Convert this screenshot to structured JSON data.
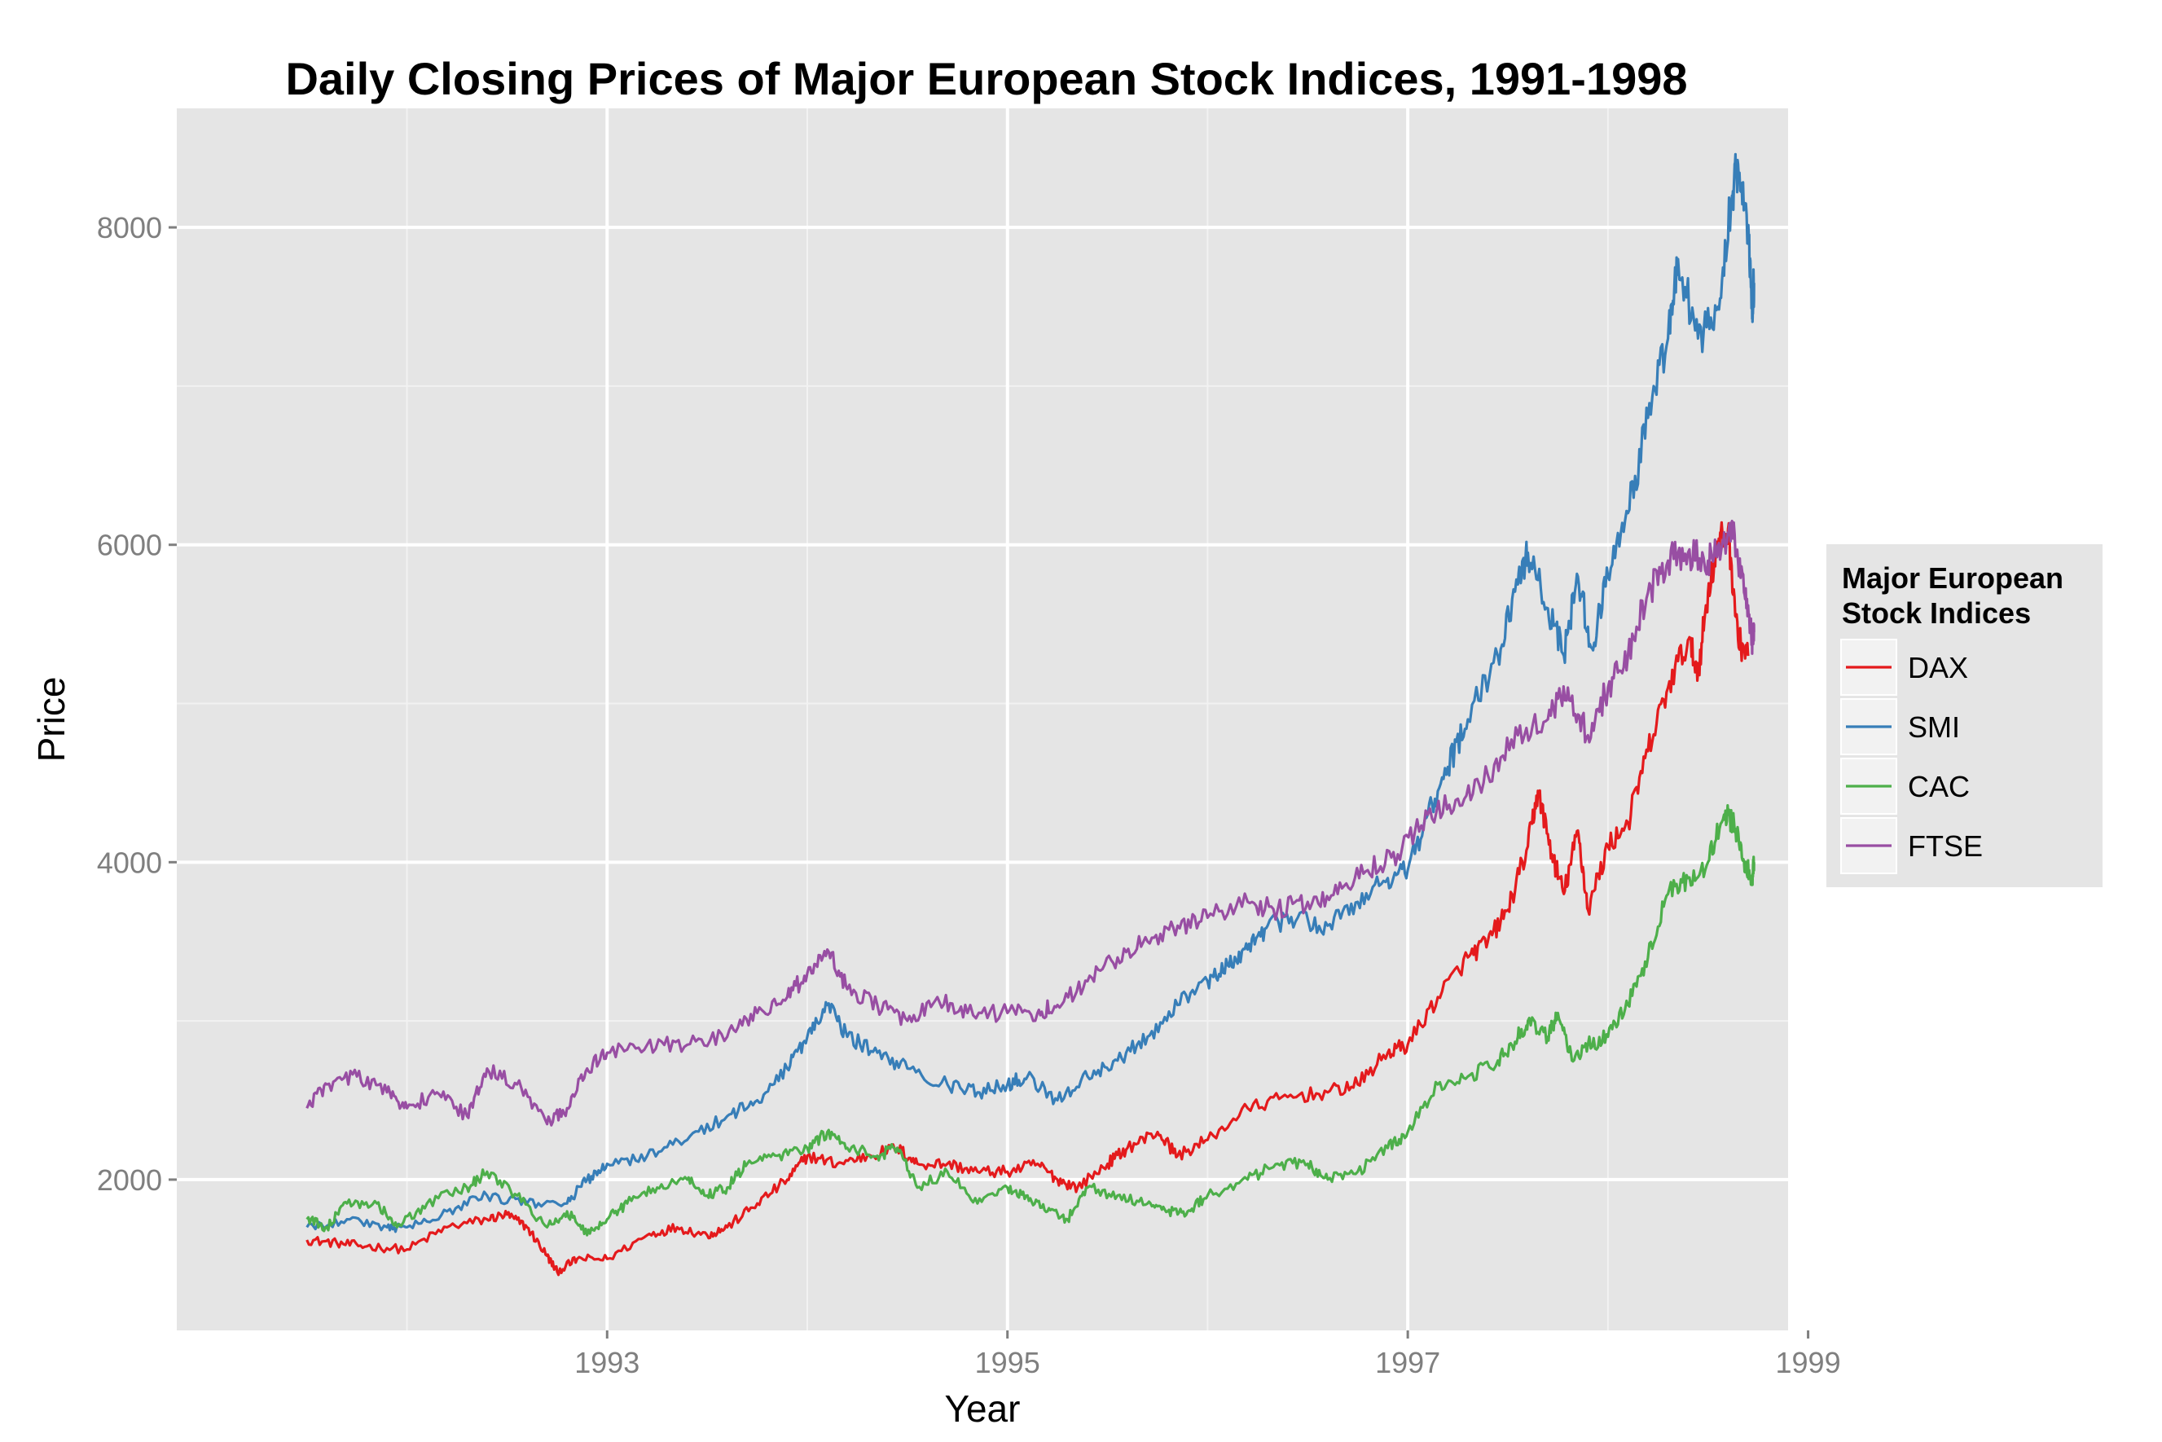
{
  "chart_data": {
    "type": "line",
    "title": "Daily Closing Prices of Major European Stock Indices, 1991-1998",
    "xlabel": "Year",
    "ylabel": "Price",
    "x_ticks": [
      1993,
      1995,
      1997,
      1999
    ],
    "y_ticks": [
      2000,
      4000,
      6000,
      8000
    ],
    "xlim": [
      1990.85,
      1998.9
    ],
    "ylim": [
      1050,
      8750
    ],
    "grid": true,
    "legend": {
      "title_line1": "Major European",
      "title_line2": "Stock Indices",
      "position": "right"
    },
    "series": [
      {
        "name": "DAX",
        "color": "#e41a1c",
        "points": [
          [
            1991.5,
            1620
          ],
          [
            1991.65,
            1600
          ],
          [
            1991.8,
            1580
          ],
          [
            1992.0,
            1560
          ],
          [
            1992.2,
            1700
          ],
          [
            1992.4,
            1750
          ],
          [
            1992.5,
            1780
          ],
          [
            1992.6,
            1700
          ],
          [
            1992.7,
            1520
          ],
          [
            1992.75,
            1420
          ],
          [
            1992.85,
            1500
          ],
          [
            1993.0,
            1500
          ],
          [
            1993.2,
            1650
          ],
          [
            1993.35,
            1700
          ],
          [
            1993.5,
            1650
          ],
          [
            1993.6,
            1700
          ],
          [
            1993.75,
            1850
          ],
          [
            1993.9,
            2000
          ],
          [
            1994.0,
            2150
          ],
          [
            1994.15,
            2100
          ],
          [
            1994.3,
            2150
          ],
          [
            1994.45,
            2200
          ],
          [
            1994.55,
            2100
          ],
          [
            1994.7,
            2100
          ],
          [
            1994.85,
            2050
          ],
          [
            1995.0,
            2050
          ],
          [
            1995.15,
            2100
          ],
          [
            1995.25,
            2000
          ],
          [
            1995.35,
            1950
          ],
          [
            1995.5,
            2100
          ],
          [
            1995.6,
            2200
          ],
          [
            1995.75,
            2300
          ],
          [
            1995.85,
            2150
          ],
          [
            1996.0,
            2250
          ],
          [
            1996.2,
            2450
          ],
          [
            1996.4,
            2520
          ],
          [
            1996.6,
            2550
          ],
          [
            1996.75,
            2600
          ],
          [
            1996.9,
            2800
          ],
          [
            1997.0,
            2850
          ],
          [
            1997.15,
            3150
          ],
          [
            1997.3,
            3400
          ],
          [
            1997.4,
            3500
          ],
          [
            1997.5,
            3700
          ],
          [
            1997.6,
            4100
          ],
          [
            1997.65,
            4450
          ],
          [
            1997.72,
            4050
          ],
          [
            1997.78,
            3800
          ],
          [
            1997.85,
            4200
          ],
          [
            1997.9,
            3700
          ],
          [
            1998.0,
            4100
          ],
          [
            1998.1,
            4250
          ],
          [
            1998.2,
            4700
          ],
          [
            1998.3,
            5100
          ],
          [
            1998.4,
            5400
          ],
          [
            1998.45,
            5200
          ],
          [
            1998.5,
            5700
          ],
          [
            1998.55,
            6000
          ],
          [
            1998.6,
            6100
          ],
          [
            1998.65,
            5400
          ],
          [
            1998.7,
            5300
          ]
        ]
      },
      {
        "name": "SMI",
        "color": "#377eb8",
        "points": [
          [
            1991.5,
            1700
          ],
          [
            1991.7,
            1750
          ],
          [
            1991.9,
            1700
          ],
          [
            1992.0,
            1700
          ],
          [
            1992.2,
            1800
          ],
          [
            1992.4,
            1900
          ],
          [
            1992.6,
            1850
          ],
          [
            1992.8,
            1850
          ],
          [
            1992.9,
            2000
          ],
          [
            1993.0,
            2100
          ],
          [
            1993.2,
            2150
          ],
          [
            1993.4,
            2250
          ],
          [
            1993.6,
            2400
          ],
          [
            1993.75,
            2500
          ],
          [
            1993.9,
            2700
          ],
          [
            1994.0,
            2900
          ],
          [
            1994.1,
            3100
          ],
          [
            1994.2,
            2900
          ],
          [
            1994.35,
            2800
          ],
          [
            1994.5,
            2700
          ],
          [
            1994.7,
            2600
          ],
          [
            1994.85,
            2550
          ],
          [
            1995.0,
            2600
          ],
          [
            1995.1,
            2650
          ],
          [
            1995.25,
            2500
          ],
          [
            1995.4,
            2650
          ],
          [
            1995.55,
            2750
          ],
          [
            1995.7,
            2900
          ],
          [
            1995.85,
            3100
          ],
          [
            1996.0,
            3250
          ],
          [
            1996.1,
            3350
          ],
          [
            1996.2,
            3450
          ],
          [
            1996.3,
            3600
          ],
          [
            1996.45,
            3650
          ],
          [
            1996.6,
            3600
          ],
          [
            1996.75,
            3750
          ],
          [
            1996.9,
            3900
          ],
          [
            1997.0,
            3950
          ],
          [
            1997.1,
            4300
          ],
          [
            1997.2,
            4600
          ],
          [
            1997.3,
            4900
          ],
          [
            1997.45,
            5300
          ],
          [
            1997.55,
            5750
          ],
          [
            1997.6,
            5950
          ],
          [
            1997.7,
            5600
          ],
          [
            1997.78,
            5300
          ],
          [
            1997.85,
            5800
          ],
          [
            1997.92,
            5350
          ],
          [
            1998.0,
            5800
          ],
          [
            1998.1,
            6200
          ],
          [
            1998.2,
            6800
          ],
          [
            1998.3,
            7300
          ],
          [
            1998.35,
            7800
          ],
          [
            1998.45,
            7300
          ],
          [
            1998.55,
            7500
          ],
          [
            1998.62,
            8200
          ],
          [
            1998.65,
            8400
          ],
          [
            1998.7,
            8000
          ],
          [
            1998.72,
            7500
          ],
          [
            1998.73,
            7650
          ]
        ]
      },
      {
        "name": "CAC",
        "color": "#4daf4a",
        "points": [
          [
            1991.5,
            1750
          ],
          [
            1991.6,
            1700
          ],
          [
            1991.7,
            1850
          ],
          [
            1991.85,
            1850
          ],
          [
            1991.95,
            1700
          ],
          [
            1992.1,
            1850
          ],
          [
            1992.3,
            1950
          ],
          [
            1992.4,
            2050
          ],
          [
            1992.55,
            1900
          ],
          [
            1992.7,
            1700
          ],
          [
            1992.8,
            1800
          ],
          [
            1992.9,
            1650
          ],
          [
            1993.0,
            1750
          ],
          [
            1993.1,
            1850
          ],
          [
            1993.25,
            1950
          ],
          [
            1993.4,
            2000
          ],
          [
            1993.5,
            1900
          ],
          [
            1993.6,
            1950
          ],
          [
            1993.7,
            2100
          ],
          [
            1993.85,
            2150
          ],
          [
            1994.0,
            2200
          ],
          [
            1994.1,
            2300
          ],
          [
            1994.2,
            2200
          ],
          [
            1994.35,
            2150
          ],
          [
            1994.45,
            2200
          ],
          [
            1994.55,
            1950
          ],
          [
            1994.7,
            2050
          ],
          [
            1994.85,
            1850
          ],
          [
            1995.0,
            1950
          ],
          [
            1995.1,
            1900
          ],
          [
            1995.2,
            1800
          ],
          [
            1995.3,
            1750
          ],
          [
            1995.4,
            1950
          ],
          [
            1995.55,
            1900
          ],
          [
            1995.7,
            1850
          ],
          [
            1995.8,
            1800
          ],
          [
            1995.9,
            1800
          ],
          [
            1996.0,
            1900
          ],
          [
            1996.2,
            2000
          ],
          [
            1996.35,
            2100
          ],
          [
            1996.5,
            2100
          ],
          [
            1996.6,
            2000
          ],
          [
            1996.75,
            2050
          ],
          [
            1996.9,
            2200
          ],
          [
            1997.0,
            2300
          ],
          [
            1997.15,
            2600
          ],
          [
            1997.3,
            2650
          ],
          [
            1997.45,
            2750
          ],
          [
            1997.55,
            2900
          ],
          [
            1997.6,
            3000
          ],
          [
            1997.7,
            2900
          ],
          [
            1997.75,
            3050
          ],
          [
            1997.82,
            2750
          ],
          [
            1997.9,
            2850
          ],
          [
            1998.0,
            2900
          ],
          [
            1998.1,
            3100
          ],
          [
            1998.2,
            3400
          ],
          [
            1998.3,
            3800
          ],
          [
            1998.4,
            3900
          ],
          [
            1998.5,
            4000
          ],
          [
            1998.58,
            4300
          ],
          [
            1998.63,
            4250
          ],
          [
            1998.68,
            4000
          ],
          [
            1998.72,
            3900
          ],
          [
            1998.73,
            4000
          ]
        ]
      },
      {
        "name": "FTSE",
        "color": "#984ea3",
        "points": [
          [
            1991.5,
            2450
          ],
          [
            1991.6,
            2600
          ],
          [
            1991.75,
            2650
          ],
          [
            1991.9,
            2550
          ],
          [
            1992.0,
            2450
          ],
          [
            1992.15,
            2550
          ],
          [
            1992.3,
            2400
          ],
          [
            1992.4,
            2700
          ],
          [
            1992.55,
            2600
          ],
          [
            1992.7,
            2350
          ],
          [
            1992.8,
            2450
          ],
          [
            1992.9,
            2700
          ],
          [
            1993.0,
            2800
          ],
          [
            1993.2,
            2850
          ],
          [
            1993.4,
            2850
          ],
          [
            1993.6,
            2900
          ],
          [
            1993.75,
            3050
          ],
          [
            1993.9,
            3150
          ],
          [
            1994.0,
            3300
          ],
          [
            1994.1,
            3450
          ],
          [
            1994.2,
            3200
          ],
          [
            1994.35,
            3100
          ],
          [
            1994.5,
            3000
          ],
          [
            1994.65,
            3150
          ],
          [
            1994.8,
            3050
          ],
          [
            1995.0,
            3050
          ],
          [
            1995.15,
            3050
          ],
          [
            1995.25,
            3100
          ],
          [
            1995.4,
            3250
          ],
          [
            1995.55,
            3400
          ],
          [
            1995.7,
            3500
          ],
          [
            1995.85,
            3600
          ],
          [
            1996.0,
            3650
          ],
          [
            1996.2,
            3750
          ],
          [
            1996.35,
            3700
          ],
          [
            1996.5,
            3750
          ],
          [
            1996.65,
            3800
          ],
          [
            1996.8,
            3950
          ],
          [
            1996.95,
            4050
          ],
          [
            1997.1,
            4300
          ],
          [
            1997.25,
            4400
          ],
          [
            1997.4,
            4550
          ],
          [
            1997.55,
            4800
          ],
          [
            1997.7,
            4900
          ],
          [
            1997.8,
            5100
          ],
          [
            1997.9,
            4800
          ],
          [
            1998.0,
            5100
          ],
          [
            1998.1,
            5300
          ],
          [
            1998.2,
            5700
          ],
          [
            1998.3,
            5900
          ],
          [
            1998.4,
            5950
          ],
          [
            1998.5,
            5900
          ],
          [
            1998.57,
            6000
          ],
          [
            1998.62,
            6150
          ],
          [
            1998.68,
            5700
          ],
          [
            1998.72,
            5400
          ],
          [
            1998.73,
            5450
          ]
        ]
      }
    ]
  }
}
